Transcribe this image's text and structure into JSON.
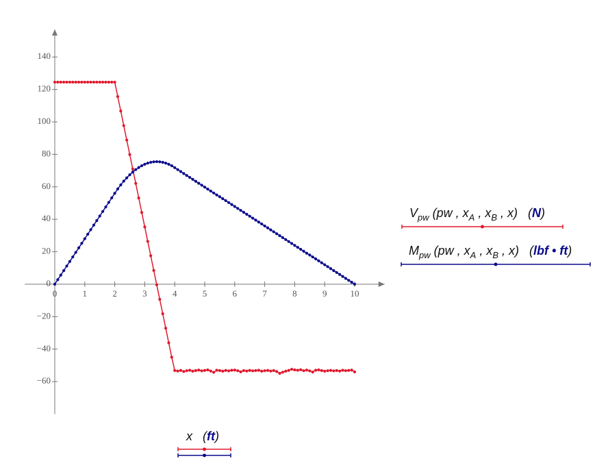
{
  "chart_data": {
    "type": "line",
    "x": [
      0,
      0.1,
      0.2,
      0.3,
      0.4,
      0.5,
      0.6,
      0.7,
      0.8,
      0.9,
      1,
      1.1,
      1.2,
      1.3,
      1.4,
      1.5,
      1.6,
      1.7,
      1.8,
      1.9,
      2,
      2.1,
      2.2,
      2.3,
      2.4,
      2.5,
      2.6,
      2.7,
      2.8,
      2.9,
      3,
      3.1,
      3.2,
      3.3,
      3.4,
      3.5,
      3.6,
      3.7,
      3.8,
      3.9,
      4,
      4.1,
      4.2,
      4.3,
      4.4,
      4.5,
      4.6,
      4.7,
      4.8,
      4.9,
      5,
      5.1,
      5.2,
      5.3,
      5.4,
      5.5,
      5.6,
      5.7,
      5.8,
      5.9,
      6,
      6.1,
      6.2,
      6.3,
      6.4,
      6.5,
      6.6,
      6.7,
      6.8,
      6.9,
      7,
      7.1,
      7.2,
      7.3,
      7.4,
      7.5,
      7.6,
      7.7,
      7.8,
      7.9,
      8,
      8.1,
      8.2,
      8.3,
      8.4,
      8.5,
      8.6,
      8.7,
      8.8,
      8.9,
      9,
      9.1,
      9.2,
      9.3,
      9.4,
      9.5,
      9.6,
      9.7,
      9.8,
      9.9,
      10
    ],
    "series": [
      {
        "name": [
          {
            "t": "V"
          },
          {
            "t": "pw",
            "sub": true
          },
          {
            "t": " (pw , x"
          },
          {
            "t": "A",
            "sub": true
          },
          {
            "t": " , x"
          },
          {
            "t": "B",
            "sub": true
          },
          {
            "t": " , x)   ("
          },
          {
            "t": "N",
            "bold": true
          },
          {
            "t": ")"
          }
        ],
        "color": "#e0182d",
        "values": [
          124.5,
          124.5,
          124.5,
          124.5,
          124.5,
          124.5,
          124.5,
          124.5,
          124.5,
          124.5,
          124.5,
          124.5,
          124.5,
          124.5,
          124.5,
          124.5,
          124.5,
          124.5,
          124.5,
          124.5,
          124.5,
          115.6,
          106.7,
          97.7,
          88.8,
          79.9,
          71.0,
          62.1,
          53.1,
          44.2,
          35.3,
          26.4,
          17.5,
          8.5,
          -0.4,
          -9.3,
          -18.2,
          -27.1,
          -36.1,
          -45.0,
          -53.2,
          -53.5,
          -53.1,
          -53.8,
          -53.3,
          -53.0,
          -53.6,
          -53.2,
          -52.9,
          -53.4,
          -53.1,
          -52.8,
          -53.5,
          -54.3,
          -53.0,
          -53.2,
          -53.6,
          -53.1,
          -53.4,
          -53.0,
          -52.9,
          -53.3,
          -54.0,
          -53.2,
          -53.5,
          -53.1,
          -53.4,
          -53.2,
          -53.0,
          -53.6,
          -53.3,
          -53.1,
          -53.5,
          -53.2,
          -53.8,
          -54.9,
          -54.2,
          -53.6,
          -53.1,
          -52.4,
          -52.8,
          -53.0,
          -52.7,
          -53.3,
          -52.9,
          -53.4,
          -54.1,
          -53.0,
          -52.8,
          -53.2,
          -53.6,
          -53.3,
          -53.1,
          -53.4,
          -53.2,
          -53.5,
          -53.0,
          -53.3,
          -53.1,
          -52.9,
          -54.0
        ]
      },
      {
        "name": [
          {
            "t": "M"
          },
          {
            "t": "pw",
            "sub": true
          },
          {
            "t": " (pw , x"
          },
          {
            "t": "A",
            "sub": true
          },
          {
            "t": " , x"
          },
          {
            "t": "B",
            "sub": true
          },
          {
            "t": " , x)   ("
          },
          {
            "t": "lbf • ft",
            "bold": true
          },
          {
            "t": ")"
          }
        ],
        "color": "#0a0a8c",
        "values": [
          0,
          2.8,
          5.6,
          8.4,
          11.2,
          14,
          16.8,
          19.6,
          22.4,
          25.2,
          28,
          30.8,
          33.6,
          36.4,
          39.2,
          42,
          44.8,
          47.6,
          50.4,
          53.2,
          56,
          58.7,
          61.2,
          63.5,
          65.5,
          67.4,
          69.1,
          70.6,
          71.9,
          73.0,
          73.9,
          74.6,
          75.1,
          75.4,
          75.5,
          75.4,
          75.1,
          74.6,
          73.9,
          73.0,
          71.8,
          70.6,
          69.4,
          68.2,
          67.0,
          65.8,
          64.6,
          63.4,
          62.2,
          61.0,
          59.8,
          58.6,
          57.4,
          56.2,
          55.0,
          53.9,
          52.7,
          51.5,
          50.3,
          49.1,
          47.9,
          46.7,
          45.5,
          44.3,
          43.1,
          41.9,
          40.7,
          39.5,
          38.3,
          37.1,
          35.9,
          34.7,
          33.5,
          32.3,
          31.1,
          29.9,
          28.7,
          27.5,
          26.3,
          25.1,
          23.9,
          22.7,
          21.5,
          20.3,
          19.1,
          18.0,
          16.8,
          15.6,
          14.4,
          13.2,
          12.0,
          10.8,
          9.6,
          8.4,
          7.2,
          6.0,
          4.8,
          3.6,
          2.4,
          1.2,
          0
        ]
      }
    ],
    "x_label": [
      {
        "t": "x   ("
      },
      {
        "t": "ft",
        "bold": true
      },
      {
        "t": ")"
      }
    ],
    "xlim": [
      -1,
      11
    ],
    "ylim": [
      -80,
      157
    ],
    "xticks": [
      0,
      1,
      2,
      3,
      4,
      5,
      6,
      7,
      8,
      9,
      10
    ],
    "yticks": [
      {
        "value": -60,
        "label": "−60"
      },
      {
        "value": -40,
        "label": "−40"
      },
      {
        "value": -20,
        "label": "−20"
      },
      0,
      20,
      40,
      60,
      80,
      100,
      120,
      140
    ]
  }
}
